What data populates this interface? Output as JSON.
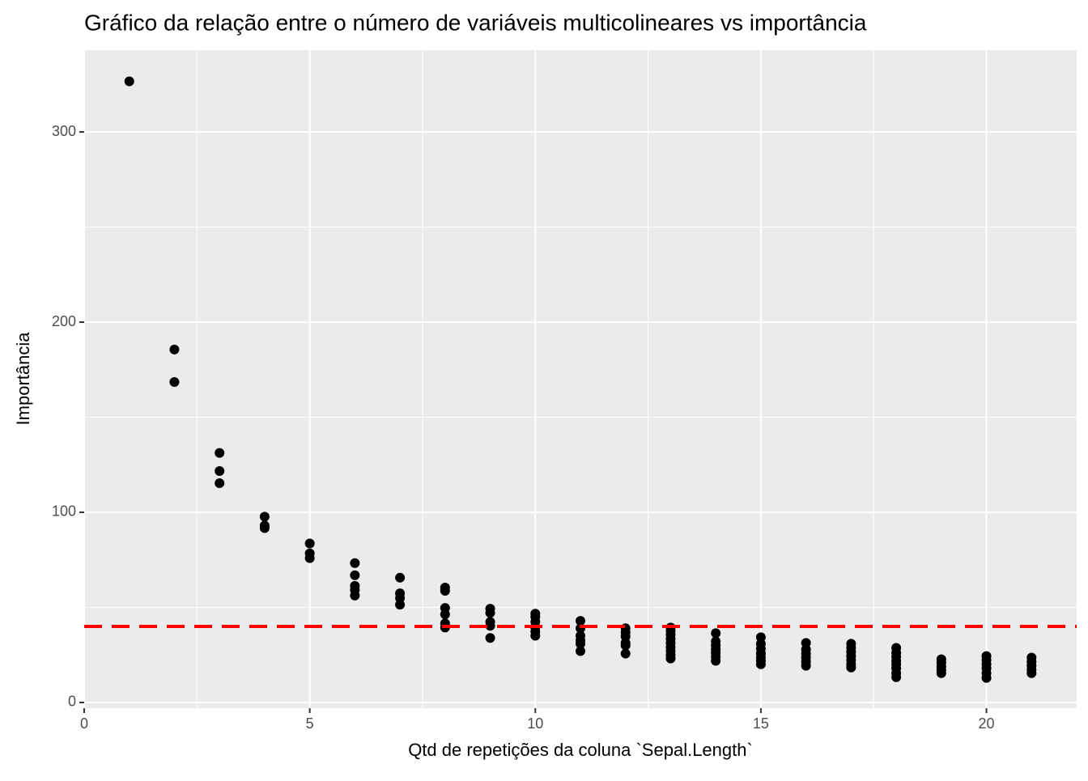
{
  "chart_data": {
    "type": "scatter",
    "title": "Gráfico da relação entre o número de variáveis multicolineares vs importância",
    "x_label": "Qtd de repetições da coluna `Sepal.Length`",
    "y_label": "Importância",
    "x": [
      1,
      2,
      2,
      3,
      3,
      3,
      4,
      4,
      4,
      5,
      5,
      5,
      6,
      6,
      6,
      6,
      6,
      7,
      7,
      7,
      7,
      8,
      8,
      8,
      8,
      8,
      8,
      9,
      9,
      9,
      9,
      9,
      10,
      10,
      10,
      10,
      10,
      10,
      11,
      11,
      11,
      11,
      11,
      11,
      12,
      12,
      12,
      12,
      12,
      12,
      13,
      13,
      13,
      13,
      13,
      13,
      13,
      13,
      13,
      14,
      14,
      14,
      14,
      14,
      14,
      14,
      15,
      15,
      15,
      15,
      15,
      15,
      15,
      16,
      16,
      16,
      16,
      16,
      16,
      17,
      17,
      17,
      17,
      17,
      17,
      17,
      18,
      18,
      18,
      18,
      18,
      18,
      18,
      18,
      19,
      19,
      19,
      19,
      19,
      20,
      20,
      20,
      20,
      20,
      20,
      21,
      21,
      21,
      21,
      21
    ],
    "values": [
      326.6,
      185.6,
      168.5,
      131.2,
      121.7,
      115.3,
      97.7,
      93,
      91.7,
      83.6,
      78.4,
      75.9,
      73.3,
      66.9,
      61.3,
      59.2,
      56.2,
      65.6,
      57.4,
      54.9,
      51.4,
      60.4,
      58.7,
      49.7,
      46.3,
      41.6,
      39.4,
      49.3,
      47.1,
      42.4,
      40.3,
      33.9,
      46.7,
      45,
      42.4,
      39.4,
      37.3,
      35.1,
      42.9,
      39,
      35.1,
      32.6,
      30.9,
      27,
      39,
      36.9,
      34.7,
      31.3,
      30,
      25.7,
      39.4,
      37.7,
      35.6,
      33.4,
      31.3,
      29.1,
      27,
      24.9,
      23.1,
      36.4,
      32.1,
      30,
      27.9,
      26.1,
      24,
      21.9,
      34.3,
      30.9,
      28.3,
      25.7,
      23.6,
      21.9,
      20.1,
      31.3,
      27.9,
      25.7,
      23.6,
      21.4,
      19.3,
      30.9,
      28.7,
      26.6,
      24.4,
      22.3,
      20.1,
      18.4,
      28.7,
      26.1,
      24,
      21.9,
      20.1,
      18,
      15.4,
      13.3,
      22.7,
      21,
      18.9,
      17.1,
      15.4,
      24.4,
      22.3,
      20.1,
      18,
      15.4,
      12.9,
      23.6,
      21.4,
      19.3,
      17.1,
      15.4
    ],
    "color": "#000000",
    "hline": {
      "value": 40,
      "color": "#ff0000"
    },
    "xlim": [
      0,
      22
    ],
    "xticks": [
      0,
      5,
      10,
      15,
      20
    ],
    "minor_xticks": [
      2.5,
      7.5,
      12.5,
      17.5
    ],
    "ylim": [
      -3,
      343
    ],
    "yticks": [
      0,
      100,
      200,
      300
    ],
    "minor_yticks": [
      50,
      150,
      250
    ],
    "grid": true
  }
}
